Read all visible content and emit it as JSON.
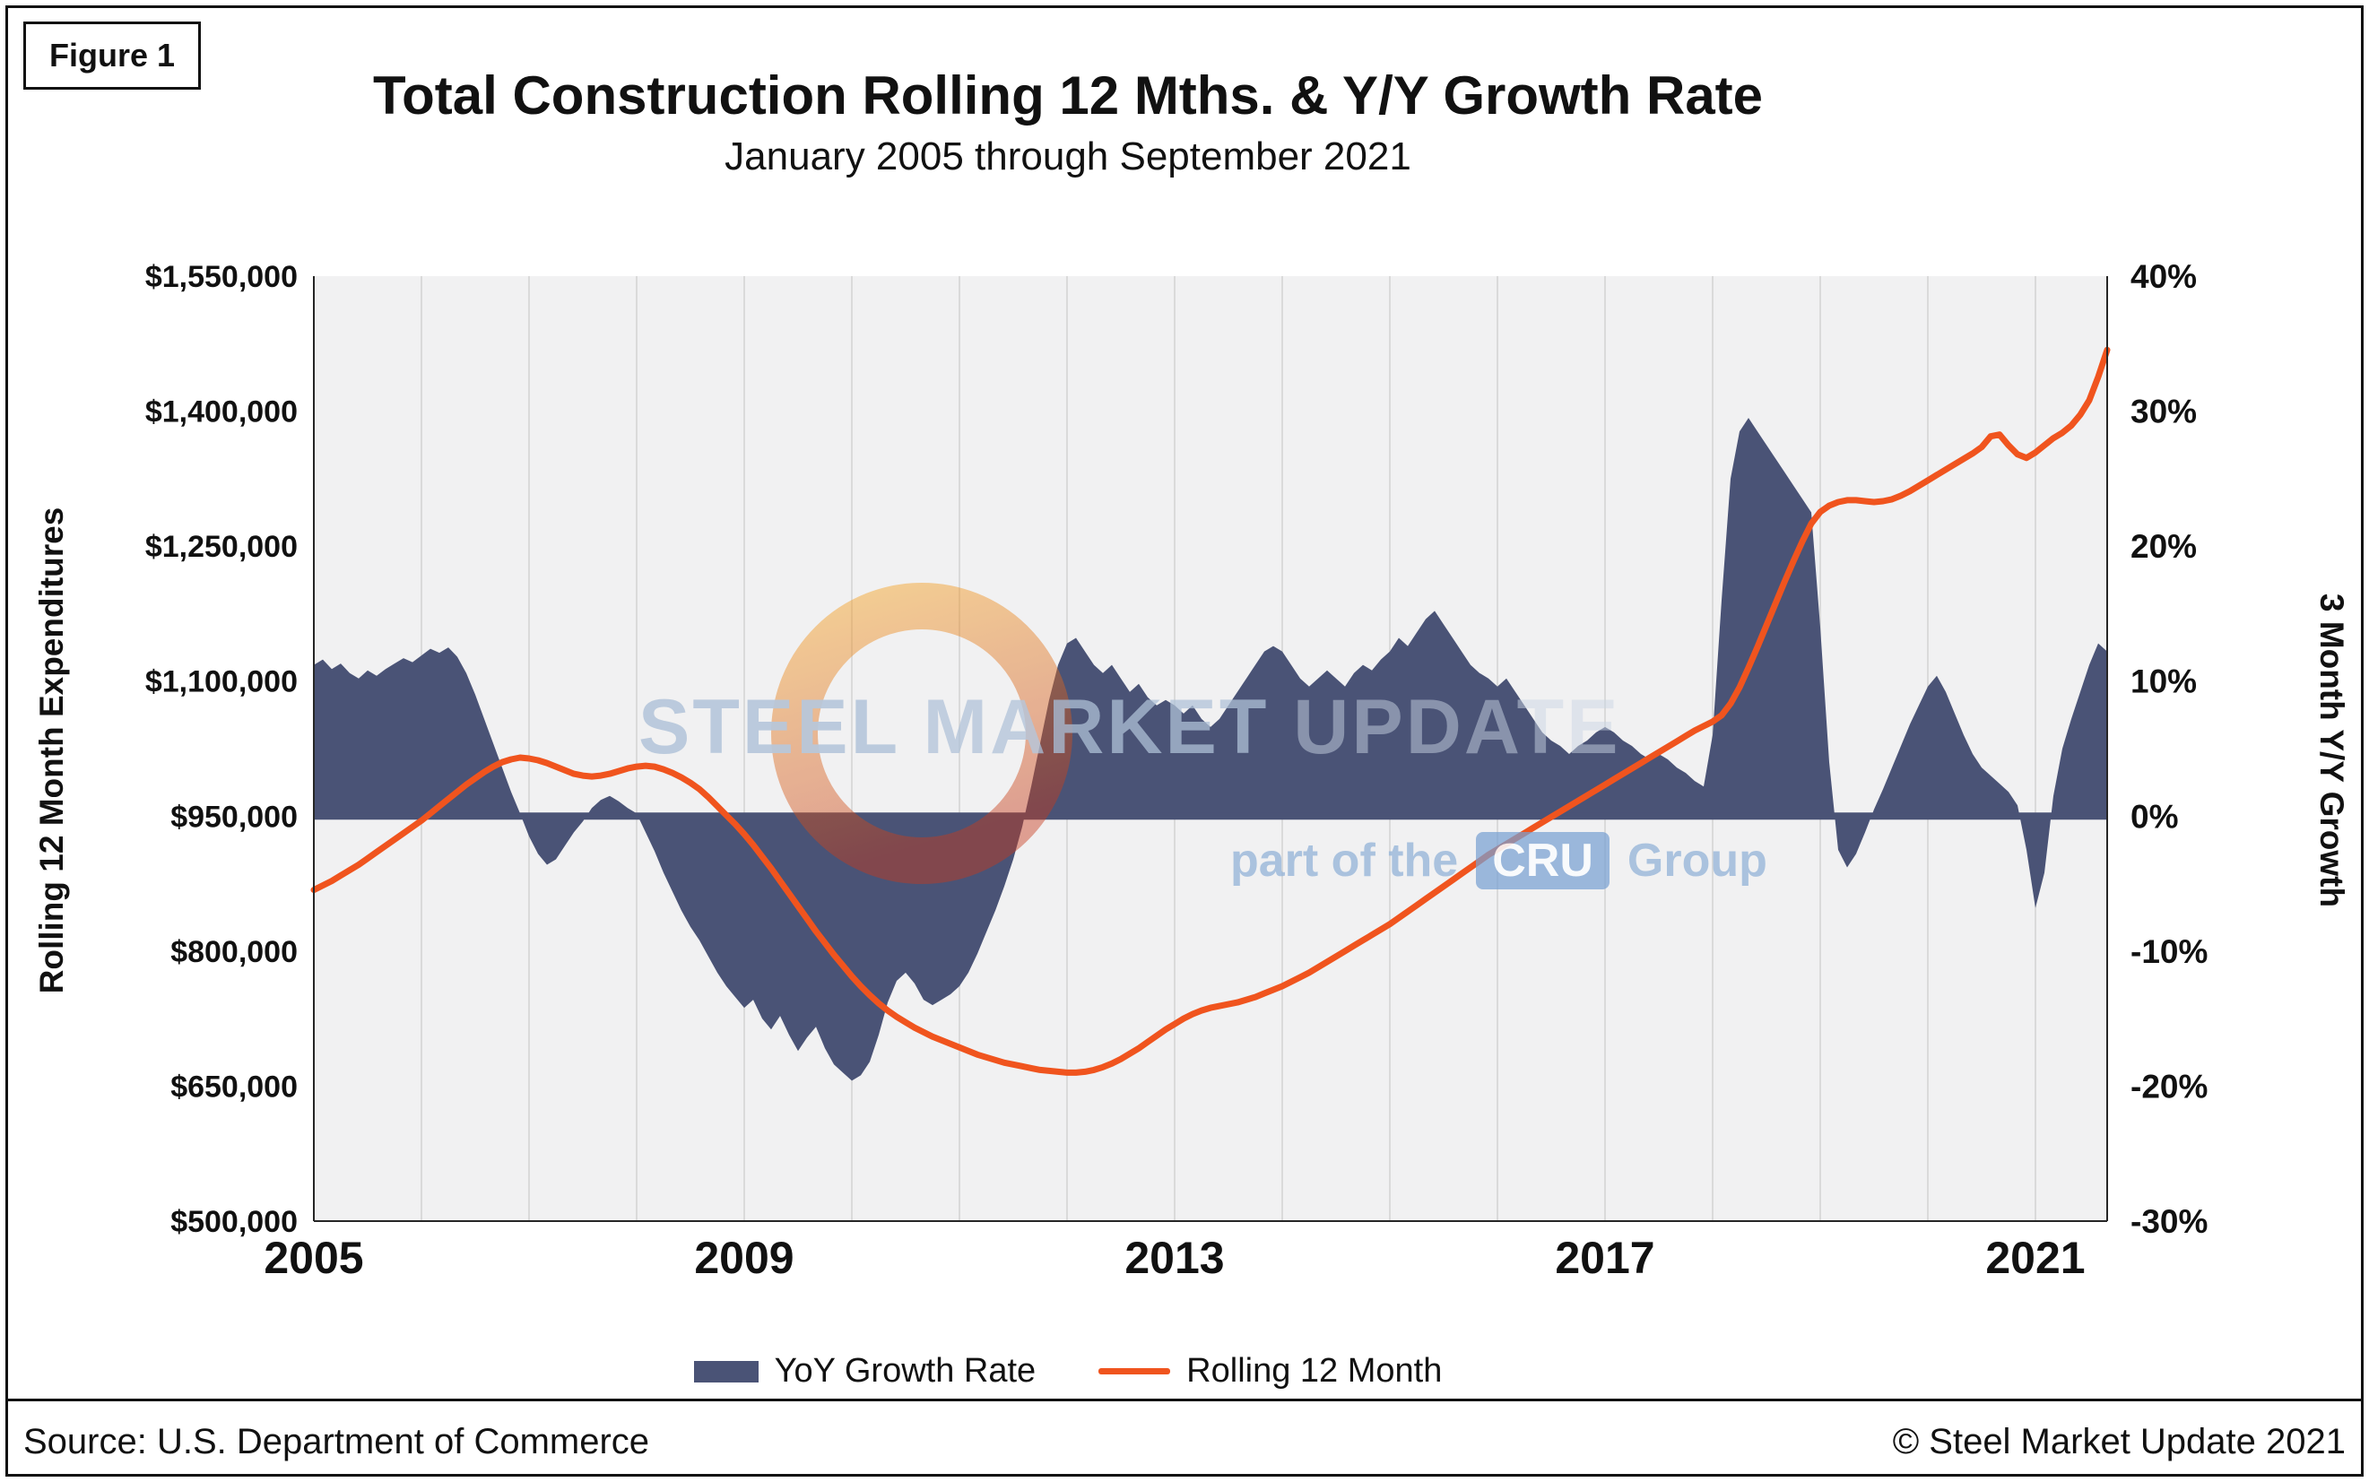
{
  "figure_label": "Figure 1",
  "title": "Total Construction Rolling 12 Mths. & Y/Y Growth Rate",
  "subtitle": "January 2005 through September 2021",
  "footer": {
    "source": "Source: U.S. Department of Commerce",
    "copyright": "© Steel Market Update 2021"
  },
  "watermark": {
    "word1": "STEEL",
    "word2": "MARKET",
    "word3": "UPDATE",
    "tagline_prefix": "part of the",
    "cru": "CRU",
    "tagline_suffix": "Group",
    "ring_color_top": "#f6a11f",
    "ring_color_bottom": "#c63a1c"
  },
  "chart_data": {
    "type": "combo",
    "x": {
      "start_year": 2005,
      "start_month": 1,
      "end_year": 2021,
      "end_month": 9,
      "tick_years": [
        2005,
        2009,
        2013,
        2017,
        2021
      ],
      "tick_labels": [
        "2005",
        "2009",
        "2013",
        "2017",
        "2021"
      ],
      "gridline_interval_years": 1
    },
    "left_axis": {
      "title": "Rolling 12 Month Expenditures",
      "min": 500000,
      "max": 1550000,
      "tick_values": [
        1550000,
        1400000,
        1250000,
        1100000,
        950000,
        800000,
        650000,
        500000
      ],
      "tick_labels": [
        "$1,550,000",
        "$1,400,000",
        "$1,250,000",
        "$1,100,000",
        "$950,000",
        "$800,000",
        "$650,000",
        "$500,000"
      ]
    },
    "right_axis": {
      "title": "3 Month Y/Y Growth",
      "min": -30,
      "max": 40,
      "tick_values": [
        40,
        30,
        20,
        10,
        0,
        -10,
        -20,
        -30
      ],
      "tick_labels": [
        "40%",
        "30%",
        "20%",
        "10%",
        "0%",
        "-10%",
        "-20%",
        "-30%"
      ]
    },
    "series": [
      {
        "name": "YoY Growth Rate",
        "type": "area",
        "axis": "right",
        "unit": "percent",
        "color": "#4a5376",
        "values": [
          11.2,
          11.6,
          10.9,
          11.3,
          10.6,
          10.2,
          10.8,
          10.4,
          10.9,
          11.3,
          11.7,
          11.4,
          11.9,
          12.4,
          12.1,
          12.5,
          11.8,
          10.6,
          9.0,
          7.2,
          5.4,
          3.6,
          1.8,
          0.2,
          -1.5,
          -2.8,
          -3.6,
          -3.2,
          -2.2,
          -1.2,
          -0.4,
          0.6,
          1.2,
          1.5,
          1.1,
          0.6,
          0.2,
          -1.2,
          -2.6,
          -4.2,
          -5.6,
          -7.0,
          -8.2,
          -9.2,
          -10.4,
          -11.6,
          -12.6,
          -13.4,
          -14.2,
          -13.6,
          -15.0,
          -15.8,
          -14.8,
          -16.2,
          -17.4,
          -16.4,
          -15.6,
          -17.2,
          -18.4,
          -19.0,
          -19.6,
          -19.2,
          -18.2,
          -16.2,
          -13.8,
          -12.2,
          -11.6,
          -12.4,
          -13.6,
          -14.0,
          -13.6,
          -13.2,
          -12.6,
          -11.6,
          -10.2,
          -8.6,
          -7.0,
          -5.2,
          -3.2,
          -0.8,
          2.2,
          5.4,
          8.6,
          11.2,
          12.8,
          13.2,
          12.2,
          11.2,
          10.6,
          11.2,
          10.2,
          9.2,
          9.8,
          8.8,
          8.2,
          8.6,
          8.2,
          7.6,
          8.2,
          7.2,
          6.6,
          7.2,
          8.2,
          9.2,
          10.2,
          11.2,
          12.2,
          12.6,
          12.2,
          11.2,
          10.2,
          9.6,
          10.2,
          10.8,
          10.2,
          9.6,
          10.6,
          11.2,
          10.8,
          11.6,
          12.2,
          13.2,
          12.6,
          13.6,
          14.6,
          15.2,
          14.2,
          13.2,
          12.2,
          11.2,
          10.6,
          10.2,
          9.6,
          10.2,
          9.2,
          8.2,
          7.2,
          6.2,
          5.6,
          5.2,
          4.6,
          5.2,
          5.6,
          6.2,
          6.6,
          6.2,
          5.6,
          5.2,
          4.6,
          4.2,
          4.6,
          4.2,
          3.6,
          3.2,
          2.6,
          2.2,
          6.0,
          16.0,
          25.0,
          28.5,
          29.5,
          28.5,
          27.5,
          26.5,
          25.5,
          24.5,
          23.5,
          22.5,
          14.0,
          4.0,
          -2.5,
          -3.8,
          -2.8,
          -1.2,
          0.5,
          2.0,
          3.6,
          5.2,
          6.8,
          8.2,
          9.6,
          10.4,
          9.2,
          7.6,
          6.0,
          4.6,
          3.6,
          3.0,
          2.4,
          1.8,
          0.8,
          -2.5,
          -6.8,
          -4.2,
          1.5,
          5.0,
          7.2,
          9.2,
          11.2,
          12.8,
          12.2
        ]
      },
      {
        "name": "Rolling 12 Month",
        "type": "line",
        "axis": "left",
        "unit": "USD thousands",
        "color": "#f0541e",
        "values": [
          868,
          873,
          878,
          884,
          890,
          896,
          903,
          910,
          917,
          924,
          931,
          938,
          945,
          953,
          961,
          969,
          977,
          985,
          992,
          999,
          1005,
          1010,
          1013,
          1015,
          1014,
          1012,
          1009,
          1005,
          1001,
          997,
          995,
          994,
          995,
          997,
          1000,
          1003,
          1005,
          1006,
          1005,
          1002,
          998,
          993,
          987,
          980,
          971,
          961,
          951,
          941,
          930,
          918,
          905,
          892,
          878,
          864,
          850,
          836,
          822,
          809,
          796,
          784,
          772,
          761,
          751,
          742,
          734,
          727,
          721,
          715,
          710,
          705,
          701,
          697,
          693,
          689,
          685,
          682,
          679,
          676,
          674,
          672,
          670,
          668,
          667,
          666,
          665,
          665,
          666,
          668,
          671,
          675,
          680,
          686,
          692,
          699,
          706,
          713,
          719,
          725,
          730,
          734,
          737,
          739,
          741,
          743,
          746,
          749,
          753,
          757,
          761,
          766,
          771,
          776,
          782,
          788,
          794,
          800,
          806,
          812,
          818,
          824,
          830,
          837,
          844,
          851,
          858,
          865,
          872,
          879,
          886,
          893,
          900,
          907,
          913,
          919,
          925,
          931,
          937,
          943,
          949,
          955,
          961,
          967,
          973,
          979,
          985,
          991,
          997,
          1003,
          1009,
          1015,
          1021,
          1027,
          1033,
          1039,
          1045,
          1050,
          1055,
          1062,
          1075,
          1093,
          1115,
          1138,
          1162,
          1186,
          1210,
          1233,
          1255,
          1275,
          1288,
          1295,
          1299,
          1301,
          1301,
          1300,
          1299,
          1300,
          1302,
          1306,
          1311,
          1317,
          1323,
          1329,
          1335,
          1341,
          1347,
          1353,
          1360,
          1372,
          1374,
          1362,
          1352,
          1348,
          1354,
          1362,
          1370,
          1376,
          1384,
          1396,
          1412,
          1438,
          1468
        ]
      }
    ]
  }
}
